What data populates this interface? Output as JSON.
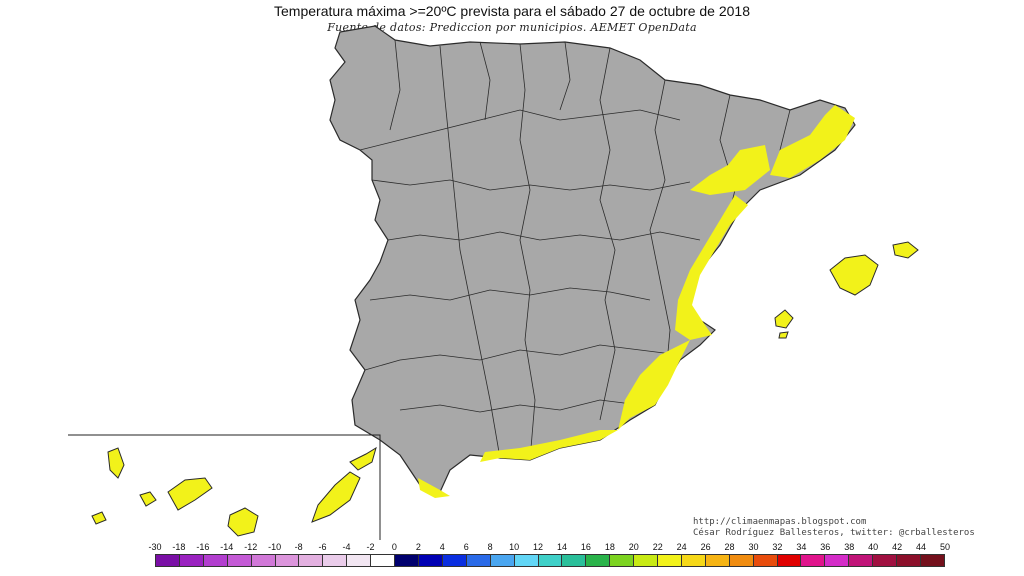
{
  "map": {
    "title": "Temperatura máxima >=20ºC prevista para el sábado 27 de octubre de 2018",
    "subtitle": "Fuente de datos: Prediccion por municipios. AEMET OpenData",
    "credits": {
      "line1": "http://climaenmapas.blogspot.com",
      "line2": "César Rodríguez Ballesteros, twitter: @crballesteros"
    },
    "colors": {
      "land": "#a8a8a8",
      "border": "#2b2b2b",
      "highlight": "#f2f21a",
      "sea": "#ffffff"
    },
    "legend": {
      "ticks": [
        "-30",
        "-18",
        "-16",
        "-14",
        "-12",
        "-10",
        "-8",
        "-6",
        "-4",
        "-2",
        "0",
        "2",
        "4",
        "6",
        "8",
        "10",
        "12",
        "14",
        "16",
        "18",
        "20",
        "22",
        "24",
        "26",
        "28",
        "30",
        "32",
        "34",
        "36",
        "38",
        "40",
        "42",
        "44",
        "50"
      ],
      "colors": [
        "#7a0fa6",
        "#9a22c0",
        "#b23ecf",
        "#c45ad6",
        "#d178d8",
        "#dc95dc",
        "#e3b0e0",
        "#eaccea",
        "#f2e6f2",
        "#ffffff",
        "#00006e",
        "#0000b4",
        "#0a2ee0",
        "#2a6ae8",
        "#4aa6f0",
        "#62d6f6",
        "#3fd0c8",
        "#2abf9a",
        "#2ab34a",
        "#7cd320",
        "#c8ea14",
        "#f2f21a",
        "#f6d818",
        "#f6b414",
        "#f08c10",
        "#e84c0c",
        "#e00000",
        "#e0148c",
        "#d42cc8",
        "#c01478",
        "#a01040",
        "#8c0f2a",
        "#74101c"
      ]
    }
  }
}
